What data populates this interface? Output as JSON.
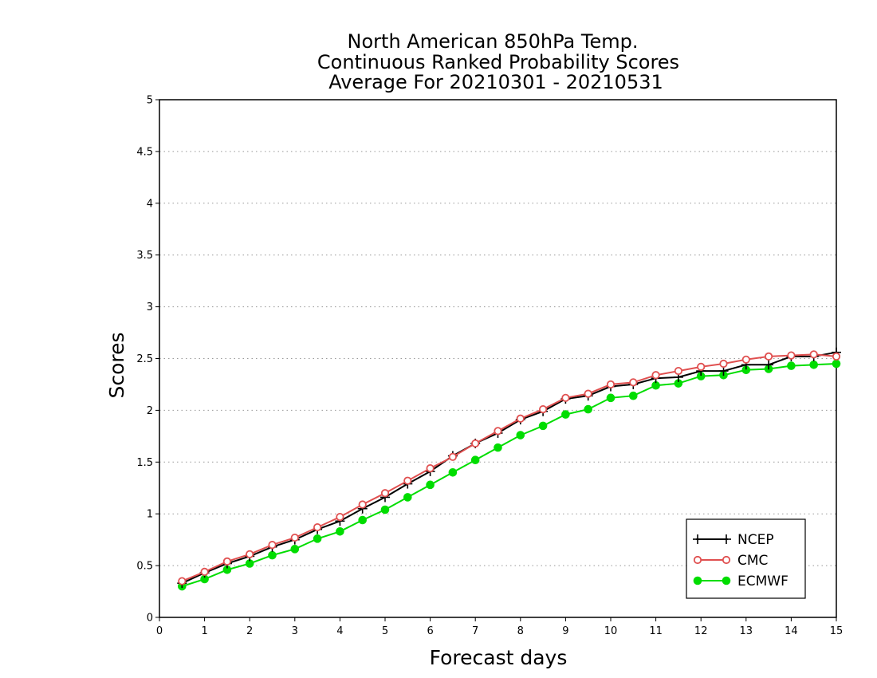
{
  "chart_data": {
    "type": "line",
    "title": [
      "North American 850hPa Temp.",
      "Continuous Ranked Probability Scores",
      "Average For 20210301 - 20210531"
    ],
    "xlabel": "Forecast days",
    "ylabel": "Scores",
    "xlim": [
      0,
      15
    ],
    "ylim": [
      0,
      5
    ],
    "x_ticks": [
      "0",
      "1",
      "2",
      "3",
      "4",
      "5",
      "6",
      "7",
      "8",
      "9",
      "10",
      "11",
      "12",
      "13",
      "14",
      "15"
    ],
    "y_ticks": [
      "0",
      "0.5",
      "1",
      "1.5",
      "2",
      "2.5",
      "3",
      "3.5",
      "4",
      "4.5",
      "5"
    ],
    "grid": "horizontal dotted",
    "legend_position": "bottom-right",
    "x": [
      0.5,
      1,
      1.5,
      2,
      2.5,
      3,
      3.5,
      4,
      4.5,
      5,
      5.5,
      6,
      6.5,
      7,
      7.5,
      8,
      8.5,
      9,
      9.5,
      10,
      10.5,
      11,
      11.5,
      12,
      12.5,
      13,
      13.5,
      14,
      14.5,
      15
    ],
    "series": [
      {
        "name": "NCEP",
        "color": "#000000",
        "marker": "plus",
        "values": [
          0.33,
          0.43,
          0.52,
          0.59,
          0.68,
          0.75,
          0.85,
          0.93,
          1.05,
          1.16,
          1.29,
          1.41,
          1.56,
          1.68,
          1.78,
          1.91,
          1.99,
          2.11,
          2.14,
          2.23,
          2.25,
          2.31,
          2.32,
          2.38,
          2.38,
          2.44,
          2.44,
          2.52,
          2.52,
          2.56
        ]
      },
      {
        "name": "CMC",
        "color": "#e05050",
        "marker": "open-circle",
        "values": [
          0.35,
          0.44,
          0.54,
          0.61,
          0.7,
          0.77,
          0.87,
          0.97,
          1.09,
          1.2,
          1.32,
          1.44,
          1.55,
          1.68,
          1.8,
          1.92,
          2.01,
          2.12,
          2.16,
          2.25,
          2.27,
          2.34,
          2.38,
          2.42,
          2.45,
          2.49,
          2.52,
          2.53,
          2.54,
          2.52
        ]
      },
      {
        "name": "ECMWF",
        "color": "#00dd00",
        "marker": "filled-circle",
        "values": [
          0.3,
          0.37,
          0.46,
          0.52,
          0.6,
          0.66,
          0.76,
          0.83,
          0.94,
          1.04,
          1.16,
          1.28,
          1.4,
          1.52,
          1.64,
          1.76,
          1.85,
          1.96,
          2.01,
          2.12,
          2.14,
          2.24,
          2.26,
          2.33,
          2.34,
          2.39,
          2.4,
          2.43,
          2.44,
          2.45
        ]
      }
    ]
  }
}
